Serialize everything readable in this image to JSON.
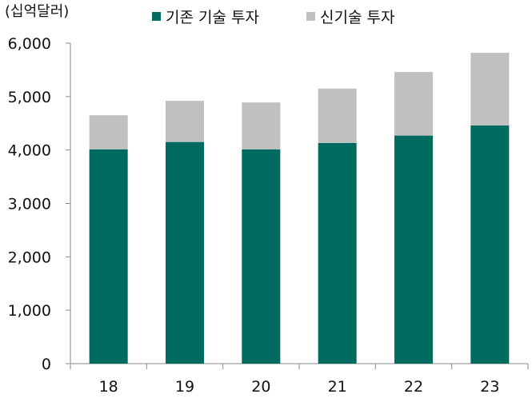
{
  "chart_data": {
    "type": "bar",
    "stacked": true,
    "unit_label": "(십억달러)",
    "categories": [
      "18",
      "19",
      "20",
      "21",
      "22",
      "23"
    ],
    "series": [
      {
        "name": "기존 기술 투자",
        "color": "#006b5e",
        "values": [
          4010,
          4150,
          4010,
          4130,
          4270,
          4460
        ]
      },
      {
        "name": "신기술 투자",
        "color": "#c0c0c0",
        "values": [
          640,
          770,
          880,
          1020,
          1190,
          1360
        ]
      }
    ],
    "ylim": [
      0,
      6000
    ],
    "yticks": [
      0,
      1000,
      2000,
      3000,
      4000,
      5000,
      6000
    ],
    "ytick_labels": [
      "0",
      "1,000",
      "2,000",
      "3,000",
      "4,000",
      "5,000",
      "6,000"
    ],
    "grid": false,
    "legend_position": "top"
  }
}
